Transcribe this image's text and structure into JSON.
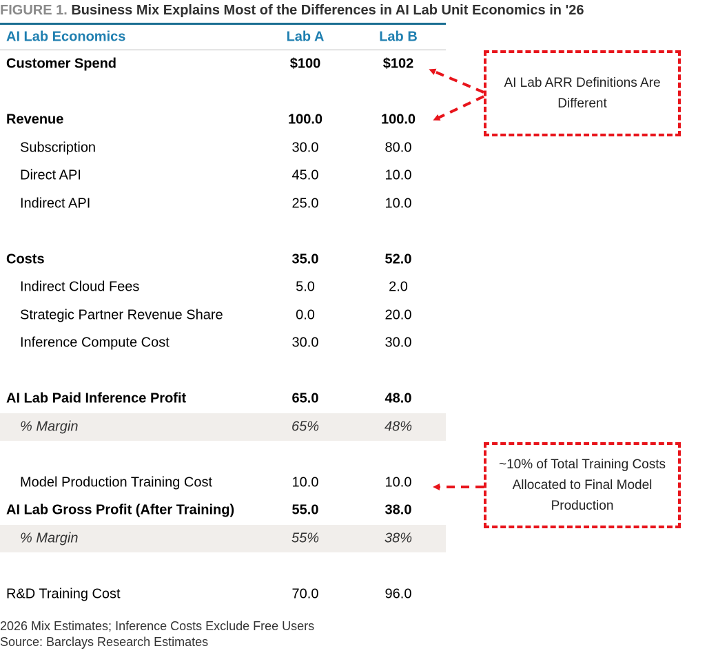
{
  "figure": {
    "label": "FIGURE 1.",
    "title": "Business Mix Explains Most of the Differences in AI Lab Unit Economics in '26"
  },
  "table": {
    "headers": {
      "label": "AI Lab Economics",
      "lab_a": "Lab A",
      "lab_b": "Lab B"
    },
    "rows": [
      {
        "label": "Customer Spend",
        "a": "$100",
        "b": "$102"
      },
      {
        "label": "",
        "a": "",
        "b": ""
      },
      {
        "label": "Revenue",
        "a": "100.0",
        "b": "100.0"
      },
      {
        "label": "Subscription",
        "a": "30.0",
        "b": "80.0"
      },
      {
        "label": "Direct API",
        "a": "45.0",
        "b": "10.0"
      },
      {
        "label": "Indirect API",
        "a": "25.0",
        "b": "10.0"
      },
      {
        "label": "",
        "a": "",
        "b": ""
      },
      {
        "label": "Costs",
        "a": "35.0",
        "b": "52.0"
      },
      {
        "label": "Indirect Cloud Fees",
        "a": "5.0",
        "b": "2.0"
      },
      {
        "label": "Strategic Partner Revenue Share",
        "a": "0.0",
        "b": "20.0"
      },
      {
        "label": "Inference Compute Cost",
        "a": "30.0",
        "b": "30.0"
      },
      {
        "label": "",
        "a": "",
        "b": ""
      },
      {
        "label": "AI Lab Paid Inference Profit",
        "a": "65.0",
        "b": "48.0"
      },
      {
        "label": "% Margin",
        "a": "65%",
        "b": "48%"
      },
      {
        "label": "",
        "a": "",
        "b": ""
      },
      {
        "label": "Model Production Training Cost",
        "a": "10.0",
        "b": "10.0"
      },
      {
        "label": "AI Lab Gross Profit (After Training)",
        "a": "55.0",
        "b": "38.0"
      },
      {
        "label": "% Margin",
        "a": "55%",
        "b": "38%"
      },
      {
        "label": "",
        "a": "",
        "b": ""
      },
      {
        "label": "R&D Training Cost",
        "a": "70.0",
        "b": "96.0"
      }
    ]
  },
  "callouts": {
    "arr_definitions": "AI Lab ARR Definitions Are Different",
    "training_allocation": "~10% of Total Training Costs Allocated to Final Model Production"
  },
  "colors": {
    "header_text": "#1f7fb0",
    "header_rule": "#1a6e92",
    "shade_row": "#f1eeeb",
    "callout_red": "#e8141b"
  },
  "footnotes": {
    "note": "2026 Mix Estimates; Inference Costs Exclude Free Users",
    "source": "Source: Barclays Research Estimates"
  }
}
